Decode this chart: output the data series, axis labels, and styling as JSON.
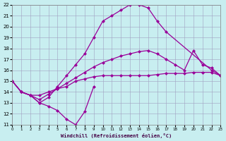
{
  "xlabel": "Windchill (Refroidissement éolien,°C)",
  "bg_color": "#c8eef0",
  "line_color": "#990099",
  "xlim": [
    0,
    23
  ],
  "ylim": [
    11,
    22
  ],
  "xticks": [
    0,
    1,
    2,
    3,
    4,
    5,
    6,
    7,
    8,
    9,
    10,
    11,
    12,
    13,
    14,
    15,
    16,
    17,
    18,
    19,
    20,
    21,
    22,
    23
  ],
  "yticks": [
    11,
    12,
    13,
    14,
    15,
    16,
    17,
    18,
    19,
    20,
    21,
    22
  ],
  "curves": [
    {
      "x": [
        0,
        1,
        2,
        3,
        4,
        5,
        6,
        7,
        8,
        9
      ],
      "y": [
        15.0,
        14.0,
        13.7,
        13.0,
        12.7,
        12.3,
        11.5,
        11.0,
        12.2,
        14.5
      ]
    },
    {
      "x": [
        0,
        1,
        2,
        3,
        4,
        5,
        6,
        7,
        8,
        9,
        10,
        11,
        12,
        13,
        14,
        15,
        16,
        17,
        18,
        19,
        20,
        21,
        22,
        23
      ],
      "y": [
        15.0,
        14.0,
        13.7,
        13.7,
        14.0,
        14.3,
        14.5,
        15.0,
        15.2,
        15.4,
        15.5,
        15.5,
        15.5,
        15.5,
        15.5,
        15.5,
        15.6,
        15.7,
        15.7,
        15.7,
        15.8,
        15.8,
        15.8,
        15.5
      ]
    },
    {
      "x": [
        0,
        1,
        2,
        3,
        4,
        5,
        6,
        7,
        8,
        9,
        10,
        11,
        12,
        13,
        14,
        15,
        16,
        17,
        22,
        23
      ],
      "y": [
        15.0,
        14.0,
        13.7,
        13.0,
        13.5,
        14.5,
        15.5,
        16.5,
        17.5,
        19.0,
        20.5,
        21.0,
        21.5,
        22.0,
        22.0,
        21.7,
        20.5,
        19.5,
        16.0,
        15.5
      ]
    },
    {
      "x": [
        0,
        1,
        2,
        3,
        4,
        5,
        6,
        7,
        8,
        9,
        10,
        11,
        12,
        13,
        14,
        15,
        16,
        17,
        18,
        19,
        20,
        21,
        22,
        23
      ],
      "y": [
        15.0,
        14.0,
        13.7,
        13.3,
        13.8,
        14.3,
        14.8,
        15.3,
        15.8,
        16.3,
        16.7,
        17.0,
        17.3,
        17.5,
        17.7,
        17.8,
        17.5,
        17.0,
        16.5,
        16.0,
        17.8,
        16.5,
        16.2,
        15.5
      ]
    }
  ]
}
